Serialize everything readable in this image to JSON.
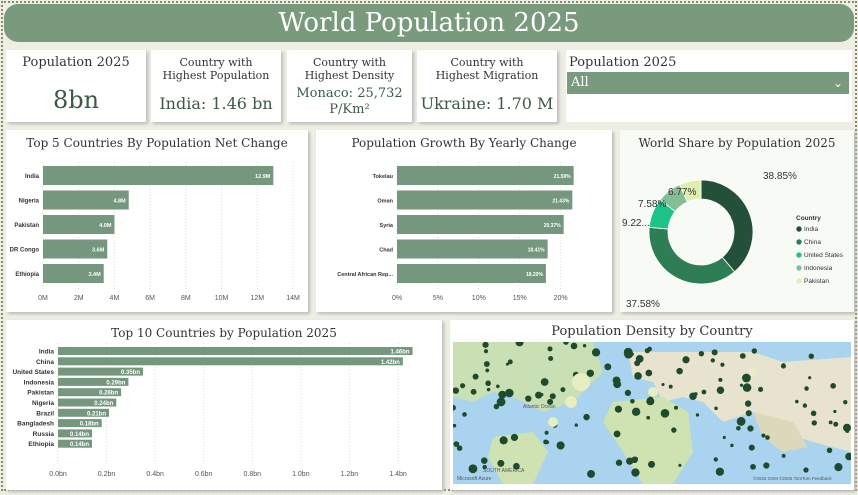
{
  "title": "World Population 2025",
  "kpis": [
    {
      "label": "Population 2025",
      "value": "8bn"
    },
    {
      "label": "Country with Highest Population",
      "value": "India: 1.46 bn"
    },
    {
      "label": "Country with Highest Density",
      "value": "Monaco: 25,732 P/Km²"
    },
    {
      "label": "Country with Highest Migration",
      "value": "Ukraine: 1.70 M"
    }
  ],
  "slicer": {
    "label": "Population 2025",
    "selected": "All"
  },
  "chart_data": [
    {
      "type": "bar",
      "title": "Top 5 Countries By Population Net Change",
      "categories": [
        "India",
        "Nigeria",
        "Pakistan",
        "DR Congo",
        "Ethiopia"
      ],
      "values": [
        12.9,
        4.8,
        4.0,
        3.6,
        3.4
      ],
      "labels": [
        "12.9M",
        "4.8M",
        "4.0M",
        "3.6M",
        "3.4M"
      ],
      "ticks": [
        "0M",
        "2M",
        "4M",
        "6M",
        "8M",
        "10M",
        "12M",
        "14M"
      ],
      "xlim": [
        0,
        14
      ]
    },
    {
      "type": "bar",
      "title": "Population Growth By Yearly Change",
      "categories": [
        "Tokelau",
        "Oman",
        "Syria",
        "Chad",
        "Central African Rep..."
      ],
      "values": [
        21.59,
        21.43,
        20.37,
        18.41,
        18.2
      ],
      "labels": [
        "21.59%",
        "21.43%",
        "20.37%",
        "18.41%",
        "18.20%"
      ],
      "ticks": [
        "0%",
        "5%",
        "10%",
        "15%",
        "20%"
      ],
      "xlim": [
        0,
        22
      ]
    },
    {
      "type": "pie",
      "title": "World Share by Population 2025",
      "legend_title": "Country",
      "categories": [
        "India",
        "China",
        "United States",
        "Indonesia",
        "Pakistan"
      ],
      "values": [
        38.85,
        37.58,
        9.22,
        7.58,
        6.77
      ],
      "labels": [
        "38.85%",
        "37.58%",
        "9.22...",
        "7.58%",
        "6.77%"
      ],
      "colors": [
        "#24503a",
        "#2e7d55",
        "#1dc48a",
        "#84bf94",
        "#dfeeb0"
      ]
    },
    {
      "type": "bar",
      "title": "Top 10 Countries by Population 2025",
      "categories": [
        "India",
        "China",
        "United States",
        "Indonesia",
        "Pakistan",
        "Nigeria",
        "Brazil",
        "Bangladesh",
        "Russia",
        "Ethiopia"
      ],
      "values": [
        1.46,
        1.42,
        0.35,
        0.29,
        0.26,
        0.24,
        0.21,
        0.18,
        0.14,
        0.14
      ],
      "labels": [
        "1.46bn",
        "1.42bn",
        "0.35bn",
        "0.29bn",
        "0.26bn",
        "0.24bn",
        "0.21bn",
        "0.18bn",
        "0.14bn",
        "0.14bn"
      ],
      "ticks": [
        "0.0bn",
        "0.2bn",
        "0.4bn",
        "0.6bn",
        "0.8bn",
        "1.0bn",
        "1.2bn",
        "1.4bn"
      ],
      "xlim": [
        0,
        1.4
      ]
    }
  ],
  "map": {
    "title": "Population Density by Country",
    "ocean_label": "Atlantic Ocean",
    "sa_label": "SOUTH AMERICA",
    "brand": "Microsoft Azure",
    "copyright": "©2025 OSM ©2025 TomTom Feedback"
  }
}
